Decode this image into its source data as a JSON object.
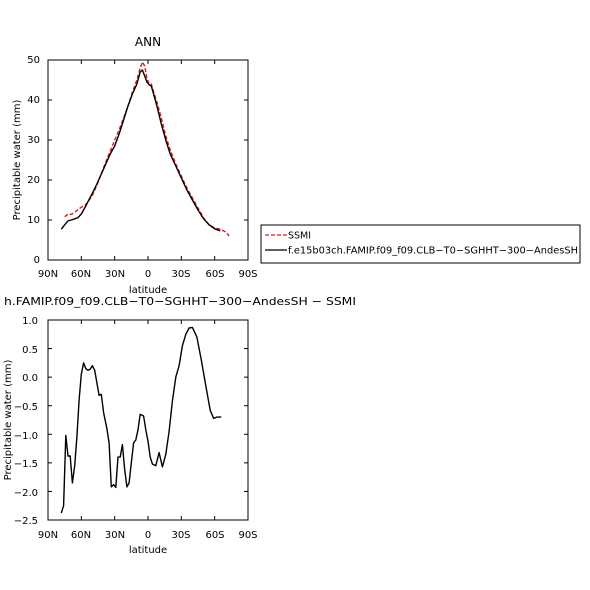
{
  "chart_data": [
    {
      "type": "line",
      "title": "ANN",
      "xlabel": "latitude",
      "ylabel": "Precipitable water (mm)",
      "xlim": [
        90,
        -90
      ],
      "ylim": [
        0,
        50
      ],
      "x_ticks": [
        {
          "value": 90,
          "label": "90N"
        },
        {
          "value": 60,
          "label": "60N"
        },
        {
          "value": 30,
          "label": "30N"
        },
        {
          "value": 0,
          "label": "0"
        },
        {
          "value": -30,
          "label": "30S"
        },
        {
          "value": -60,
          "label": "60S"
        },
        {
          "value": -90,
          "label": "90S"
        }
      ],
      "y_ticks": [
        0,
        10,
        20,
        30,
        40,
        50
      ],
      "legend_position": "right",
      "series": [
        {
          "name": "SSMI",
          "color": "#e0191b",
          "dash": true,
          "x": [
            75,
            72,
            69,
            66,
            63,
            60,
            57,
            54,
            50,
            46,
            42,
            38,
            34,
            30,
            26,
            22,
            18,
            14,
            10,
            7,
            5,
            3,
            1,
            -1,
            -3,
            -5,
            -8,
            -12,
            -16,
            -20,
            -25,
            -30,
            -35,
            -40,
            -45,
            -50,
            -55,
            -60,
            -65,
            -70,
            -73
          ],
          "values": [
            10.8,
            11.5,
            11.4,
            11.9,
            12.6,
            13.2,
            13.6,
            14.5,
            16.2,
            18.7,
            21.6,
            24.5,
            27.2,
            30.0,
            32.5,
            35.5,
            38.5,
            42.0,
            45.0,
            48.0,
            49.5,
            48.5,
            45.5,
            44.0,
            44.0,
            42.0,
            39.5,
            35.5,
            31.0,
            27.5,
            24.0,
            21.0,
            18.0,
            15.5,
            13.0,
            10.5,
            8.8,
            8.0,
            7.7,
            7.0,
            6.0
          ]
        },
        {
          "name": "f.e15b03ch.FAMIP.f09_f09.CLB−T0−SGHHT−300−AndesSH",
          "color": "#000000",
          "dash": false,
          "x": [
            78,
            75,
            72,
            69,
            66,
            63,
            60,
            57,
            54,
            50,
            46,
            42,
            38,
            34,
            30,
            26,
            22,
            18,
            14,
            10,
            7,
            5,
            3,
            1,
            -1,
            -3,
            -5,
            -8,
            -12,
            -16,
            -20,
            -25,
            -30,
            -35,
            -40,
            -45,
            -50,
            -55,
            -60,
            -65
          ],
          "values": [
            7.7,
            8.8,
            9.8,
            10.0,
            10.3,
            10.6,
            11.5,
            13.0,
            14.6,
            16.7,
            19.0,
            21.5,
            24.0,
            26.5,
            28.5,
            31.5,
            35.0,
            38.5,
            41.5,
            44.0,
            47.0,
            47.5,
            46.0,
            44.5,
            43.8,
            43.5,
            41.5,
            38.5,
            34.0,
            30.0,
            26.5,
            23.5,
            20.5,
            17.5,
            15.0,
            12.5,
            10.3,
            8.8,
            7.8,
            7.3
          ]
        }
      ]
    },
    {
      "type": "line",
      "title": "h.FAMIP.f09_f09.CLB−T0−SGHHT−300−AndesSH − SSMI",
      "xlabel": "latitude",
      "ylabel": "Precipitable water (mm)",
      "xlim": [
        90,
        -90
      ],
      "ylim": [
        -2.5,
        1.0
      ],
      "x_ticks": [
        {
          "value": 90,
          "label": "90N"
        },
        {
          "value": 60,
          "label": "60N"
        },
        {
          "value": 30,
          "label": "30N"
        },
        {
          "value": 0,
          "label": "0"
        },
        {
          "value": -30,
          "label": "30S"
        },
        {
          "value": -60,
          "label": "60S"
        },
        {
          "value": -90,
          "label": "90S"
        }
      ],
      "y_ticks": [
        -2.5,
        -2.0,
        -1.5,
        -1.0,
        -0.5,
        0.0,
        0.5,
        1.0
      ],
      "y_tick_labels": [
        "−2.5",
        "−2.0",
        "−1.5",
        "−1.0",
        "−0.5",
        "0.0",
        "0.5",
        "1.0"
      ],
      "series": [
        {
          "color": "#000000",
          "dash": false,
          "x": [
            78,
            76,
            74,
            72,
            70,
            68,
            66,
            64,
            62,
            60,
            58,
            56,
            54,
            52,
            50,
            48,
            46,
            44,
            42,
            40,
            37,
            35,
            33,
            31,
            29,
            27,
            25,
            23,
            21,
            19,
            17,
            15,
            13,
            11,
            9,
            7,
            4,
            2,
            0,
            -2,
            -4,
            -7,
            -10,
            -13,
            -16,
            -19,
            -22,
            -25,
            -28,
            -31,
            -34,
            -37,
            -40,
            -44,
            -48,
            -52,
            -56,
            -59,
            -62,
            -64,
            -66
          ],
          "values": [
            -2.38,
            -2.25,
            -1.02,
            -1.38,
            -1.38,
            -1.85,
            -1.55,
            -1.05,
            -0.4,
            0.05,
            0.25,
            0.15,
            0.12,
            0.14,
            0.2,
            0.12,
            -0.1,
            -0.32,
            -0.3,
            -0.62,
            -0.9,
            -1.15,
            -1.92,
            -1.88,
            -1.93,
            -1.4,
            -1.4,
            -1.18,
            -1.62,
            -1.92,
            -1.85,
            -1.5,
            -1.15,
            -1.1,
            -0.92,
            -0.65,
            -0.68,
            -0.92,
            -1.12,
            -1.4,
            -1.52,
            -1.55,
            -1.32,
            -1.57,
            -1.35,
            -0.95,
            -0.42,
            0.0,
            0.2,
            0.55,
            0.75,
            0.86,
            0.87,
            0.7,
            0.3,
            -0.15,
            -0.58,
            -0.72,
            -0.7,
            -0.7,
            -0.7
          ]
        }
      ]
    }
  ],
  "plot1": {
    "title": "ANN",
    "xlabel": "latitude",
    "ylabel": "Precipitable water (mm)",
    "x_tick_labels": [
      "90N",
      "60N",
      "30N",
      "0",
      "30S",
      "60S",
      "90S"
    ],
    "y_tick_labels": [
      "0",
      "10",
      "20",
      "30",
      "40",
      "50"
    ]
  },
  "plot2": {
    "title": "h.FAMIP.f09_f09.CLB−T0−SGHHT−300−AndesSH − SSMI",
    "xlabel": "latitude",
    "ylabel": "Precipitable water (mm)",
    "x_tick_labels": [
      "90N",
      "60N",
      "30N",
      "0",
      "30S",
      "60S",
      "90S"
    ],
    "y_tick_labels": [
      "−2.5",
      "−2.0",
      "−1.5",
      "−1.0",
      "−0.5",
      "0.0",
      "0.5",
      "1.0"
    ]
  },
  "legend": {
    "entries": [
      {
        "label": "SSMI",
        "color": "#e0191b",
        "dash": true
      },
      {
        "label": "f.e15b03ch.FAMIP.f09_f09.CLB−T0−SGHHT−300−AndesSH",
        "color": "#000000",
        "dash": false
      }
    ]
  }
}
